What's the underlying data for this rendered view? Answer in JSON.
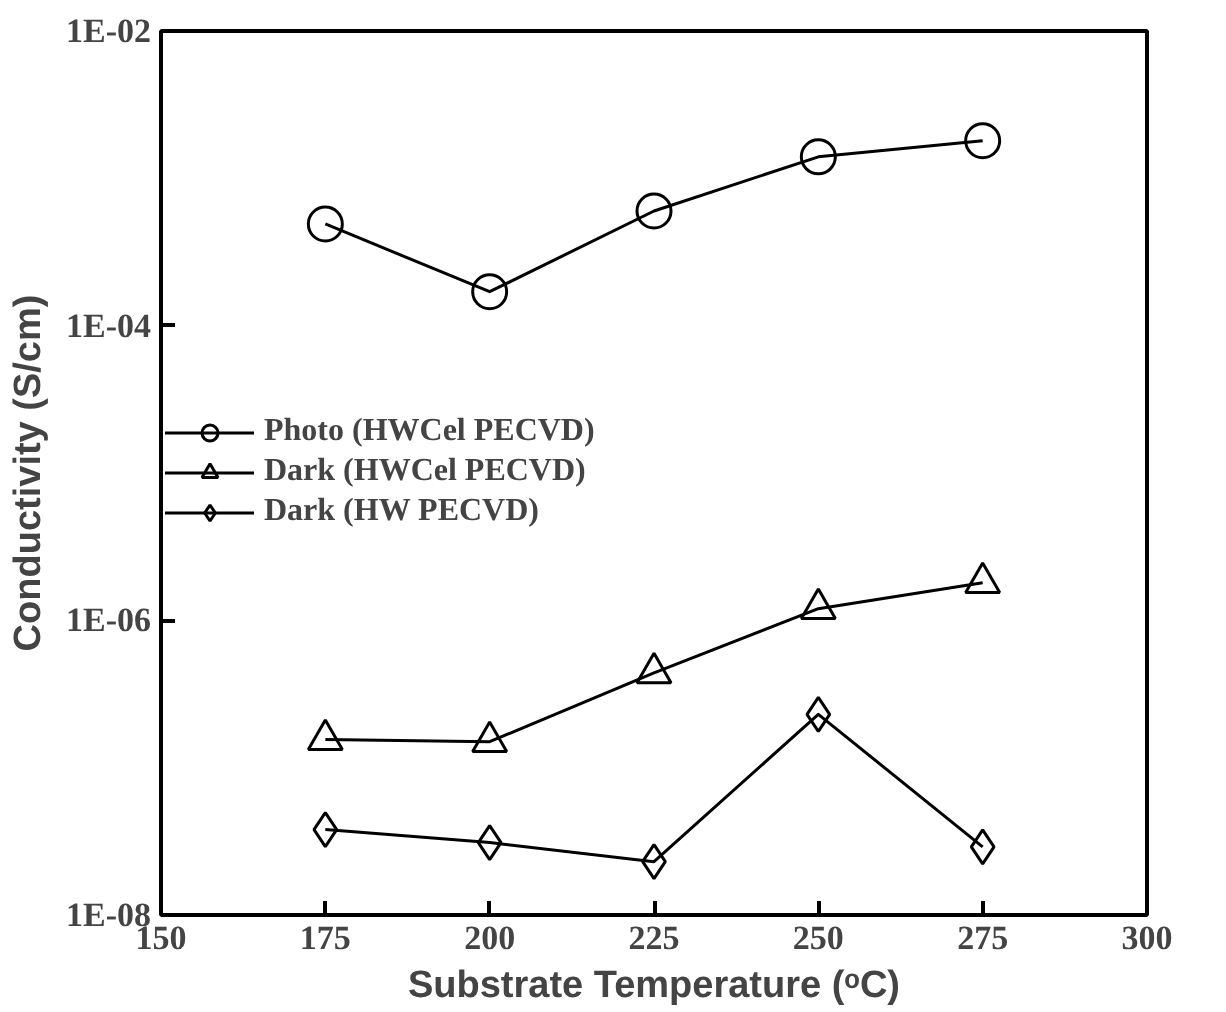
{
  "chart_data": {
    "type": "line",
    "xlabel": "Substrate Temperature (ᵒC)",
    "ylabel": "Conductivity (S/cm)",
    "x": [
      175,
      200,
      225,
      250,
      275
    ],
    "series": [
      {
        "name": "Photo (HWCel PECVD)",
        "color": "#000000",
        "marker": "circle",
        "values": [
          0.00049,
          0.00017,
          0.0006,
          0.0014,
          0.0018
        ]
      },
      {
        "name": "Dark (HWCel PECVD)",
        "color": "#000000",
        "marker": "triangle",
        "values": [
          1.55e-07,
          1.5e-07,
          4.4e-07,
          1.2e-06,
          1.8e-06
        ]
      },
      {
        "name": "Dark (HW PECVD)",
        "color": "#000000",
        "marker": "diamond",
        "values": [
          3.8e-08,
          3.1e-08,
          2.3e-08,
          2.3e-07,
          2.9e-08
        ]
      }
    ],
    "log": "y",
    "xlim": [
      150,
      300
    ],
    "xticks": [
      150,
      175,
      200,
      225,
      250,
      275,
      300
    ],
    "ylim": [
      1e-08,
      0.01
    ],
    "yticks": [
      {
        "value": 1e-08,
        "label": "1E-08"
      },
      {
        "value": 1e-06,
        "label": "1E-06"
      },
      {
        "value": 0.0001,
        "label": "1E-04"
      },
      {
        "value": 0.01,
        "label": "1E-02"
      }
    ],
    "grid": false,
    "legend": "left",
    "line_style": "solid"
  }
}
